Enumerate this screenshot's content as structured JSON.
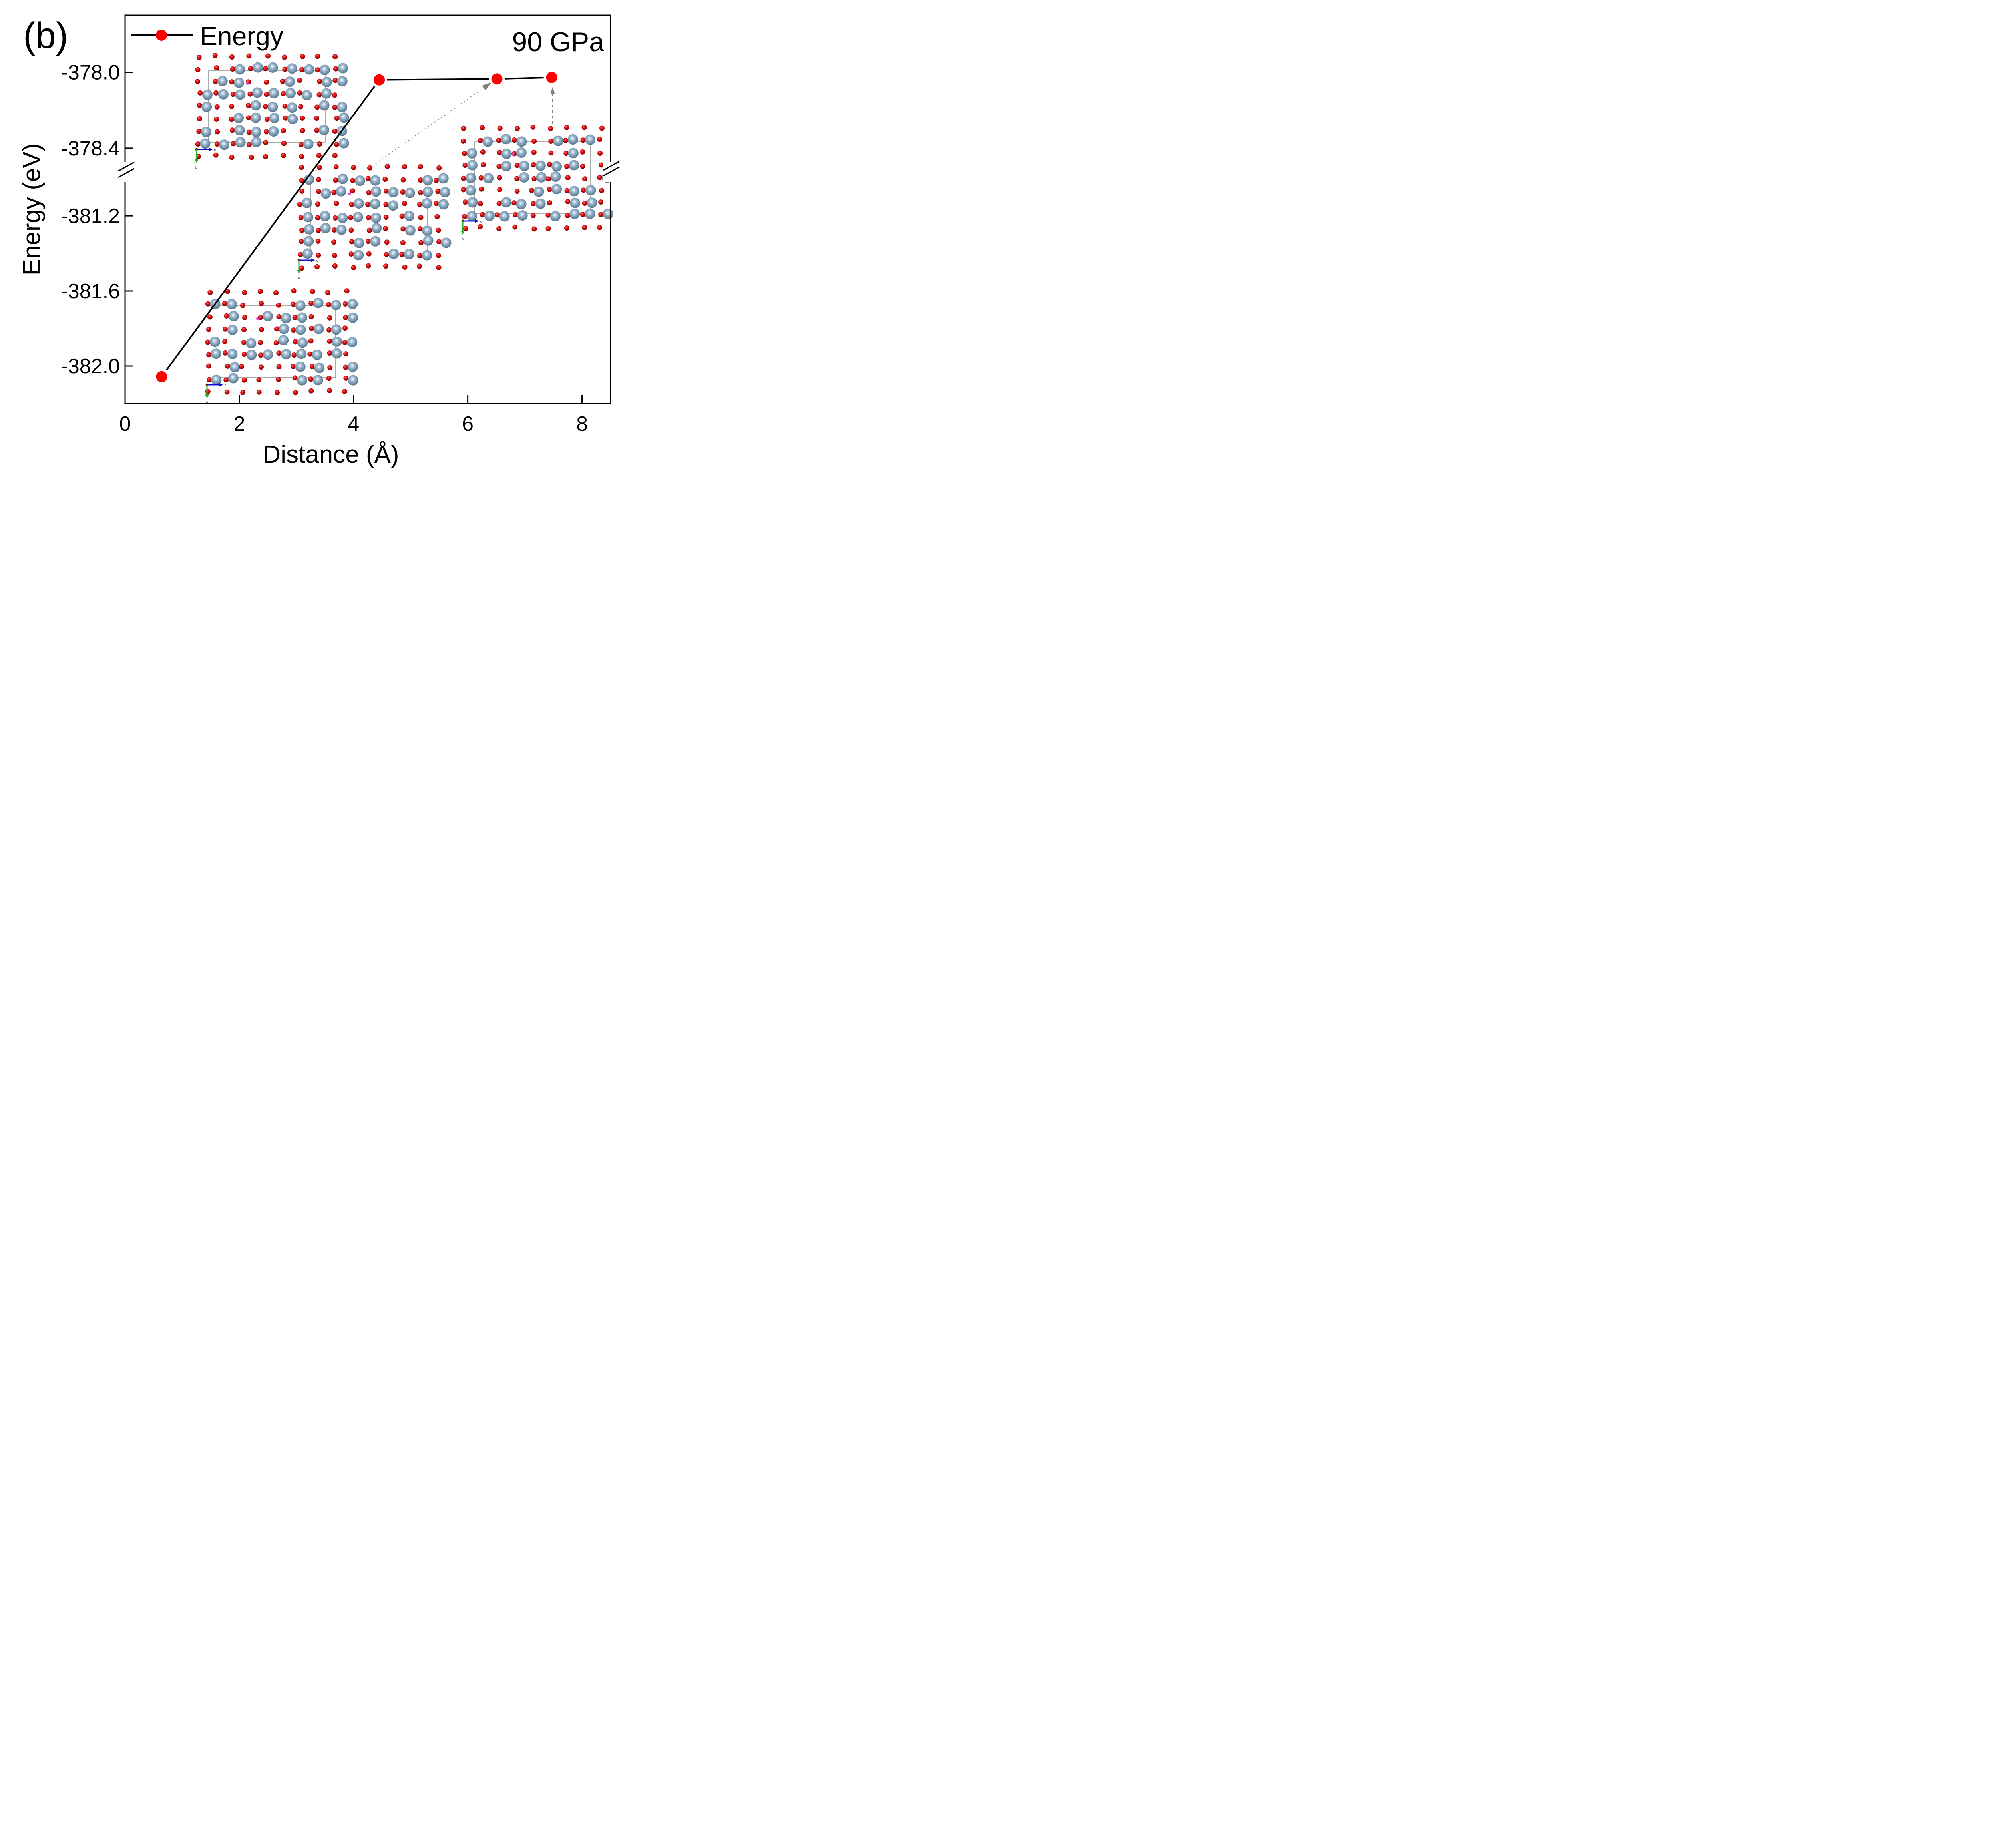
{
  "panel_label": "(b)",
  "chart_data": {
    "type": "line",
    "title": "",
    "annotation": "90 GPa",
    "xlabel": "Distance (Å)",
    "ylabel": "Energy (eV)",
    "xlim": [
      0,
      8.5
    ],
    "x_ticks": [
      0,
      2,
      4,
      6,
      8
    ],
    "x_tick_labels": [
      "0",
      "2",
      "4",
      "6",
      "8"
    ],
    "y_axis_broken": true,
    "y_segments": [
      {
        "range": [
          -382.2,
          -380.97
        ],
        "ticks": [
          -382.0,
          -381.6,
          -381.2
        ],
        "tick_labels": [
          "-382.0",
          "-381.6",
          "-381.2"
        ]
      },
      {
        "range": [
          -378.52,
          -377.7
        ],
        "ticks": [
          -378.4,
          -378.0
        ],
        "tick_labels": [
          "-378.4",
          "-378.0"
        ]
      }
    ],
    "legend": {
      "position": "top-left",
      "entries": [
        "Energy"
      ]
    },
    "grid": false,
    "series": [
      {
        "name": "Energy",
        "line_color": "#000000",
        "marker_color": "#ff0000",
        "x": [
          0.64,
          4.45,
          6.51,
          7.47
        ],
        "y": [
          -382.057,
          -378.04,
          -378.035,
          -378.027
        ]
      }
    ],
    "insets": [
      {
        "name": "structure-initial",
        "description": "crystal structure, Al/O atoms with vacancies",
        "axes": [
          "c",
          "b"
        ]
      },
      {
        "name": "structure-transition",
        "description": "crystal structure at barrier",
        "axes": [
          "c",
          "b"
        ]
      },
      {
        "name": "structure-intermediate",
        "description": "crystal structure intermediate",
        "axes": [
          "c",
          "b"
        ]
      },
      {
        "name": "structure-final",
        "description": "crystal structure final",
        "axes": [
          "c",
          "b"
        ]
      }
    ],
    "colors": {
      "large_atom": "#7f9fb8",
      "small_atom": "#d01010",
      "vacancy": "#e040e0",
      "arrow": "#808080"
    }
  }
}
